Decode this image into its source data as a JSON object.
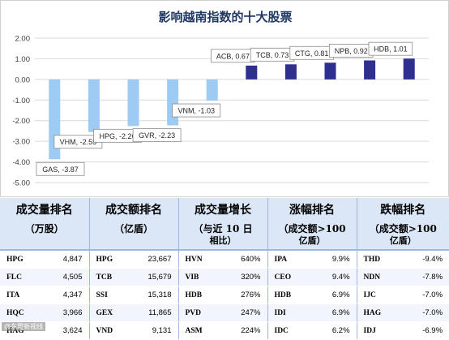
{
  "chart_data": {
    "type": "bar",
    "title": "影响越南指数的十大股票",
    "categories": [
      "GAS",
      "VHM",
      "HPG",
      "GVR",
      "VNM",
      "ACB",
      "TCB",
      "CTG",
      "NPB",
      "HDB"
    ],
    "values": [
      -3.87,
      -2.55,
      -2.26,
      -2.23,
      -1.03,
      0.67,
      0.73,
      0.81,
      0.92,
      1.01
    ],
    "data_labels": [
      "GAS, -3.87",
      "VHM, -2.55",
      "HPG, -2.26",
      "GVR, -2.23",
      "VNM, -1.03",
      "ACB, 0.67",
      "TCB, 0.73",
      "CTG, 0.81",
      "NPB, 0.92",
      "HDB, 1.01"
    ],
    "ylim": [
      -5,
      2
    ],
    "yticks": [
      "2.00",
      "1.00",
      "0.00",
      "-1.00",
      "-2.00",
      "-3.00",
      "-4.00",
      "-5.00"
    ],
    "grid": true,
    "colors": {
      "negative": "#9dcbf3",
      "positive": "#2e2f8f",
      "label_border": "#8c8c8c"
    }
  },
  "table": {
    "headers": [
      {
        "main": "成交量排名",
        "sub": "（万股）"
      },
      {
        "main": "成交额排名",
        "sub": "（亿盾）"
      },
      {
        "main": "成交量增长",
        "sub": "（与近 10 日",
        "sub2": "相比）"
      },
      {
        "main": "涨幅排名",
        "sub": "（成交额>100",
        "sub2": "亿盾）"
      },
      {
        "main": "跌幅排名",
        "sub": "（成交额>100",
        "sub2": "亿盾）"
      }
    ],
    "rows": [
      [
        "HPG",
        "4,847",
        "HPG",
        "23,667",
        "HVN",
        "640%",
        "IPA",
        "9.9%",
        "THD",
        "-9.4%"
      ],
      [
        "FLC",
        "4,505",
        "TCB",
        "15,679",
        "VIB",
        "320%",
        "CEO",
        "9.4%",
        "NDN",
        "-7.8%"
      ],
      [
        "ITA",
        "4,347",
        "SSI",
        "15,318",
        "HDB",
        "276%",
        "HDB",
        "6.9%",
        "IJC",
        "-7.0%"
      ],
      [
        "HQC",
        "3,966",
        "GEX",
        "11,865",
        "PVD",
        "247%",
        "IDI",
        "6.9%",
        "HAG",
        "-7.0%"
      ],
      [
        "HAG",
        "3,624",
        "VND",
        "9,131",
        "ASM",
        "224%",
        "IDC",
        "6.2%",
        "IDJ",
        "-6.9%"
      ]
    ]
  },
  "watermark": "@东盟新视线"
}
